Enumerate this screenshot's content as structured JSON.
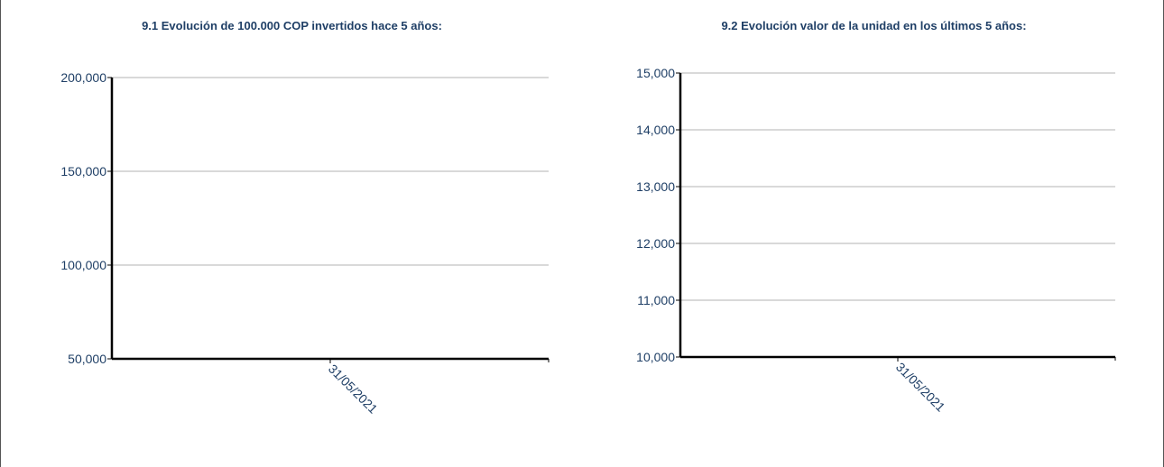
{
  "chart_data": [
    {
      "type": "line",
      "title": "9.1 Evolución de 100.000 COP invertidos hace 5 años:",
      "xlabel": "",
      "ylabel": "",
      "categories": [
        "31/05/2021"
      ],
      "series": [],
      "ylim": [
        50000,
        200000
      ],
      "yticks": [
        50000,
        100000,
        150000,
        200000
      ],
      "ytick_labels": [
        "50,000",
        "100,000",
        "150,000",
        "200,000"
      ],
      "grid": true,
      "x_tick_rotation": 45
    },
    {
      "type": "line",
      "title": "9.2 Evolución valor de la unidad en los últimos 5 años:",
      "xlabel": "",
      "ylabel": "",
      "categories": [
        "31/05/2021"
      ],
      "series": [],
      "ylim": [
        10000,
        15000
      ],
      "yticks": [
        10000,
        11000,
        12000,
        13000,
        14000,
        15000
      ],
      "ytick_labels": [
        "10,000",
        "11,000",
        "12,000",
        "13,000",
        "14,000",
        "15,000"
      ],
      "grid": true,
      "x_tick_rotation": 45
    }
  ],
  "colors": {
    "title": "#1f3f66",
    "tick_label": "#1f3f66",
    "grid": "#d9d9d9",
    "axis": "#000000"
  }
}
